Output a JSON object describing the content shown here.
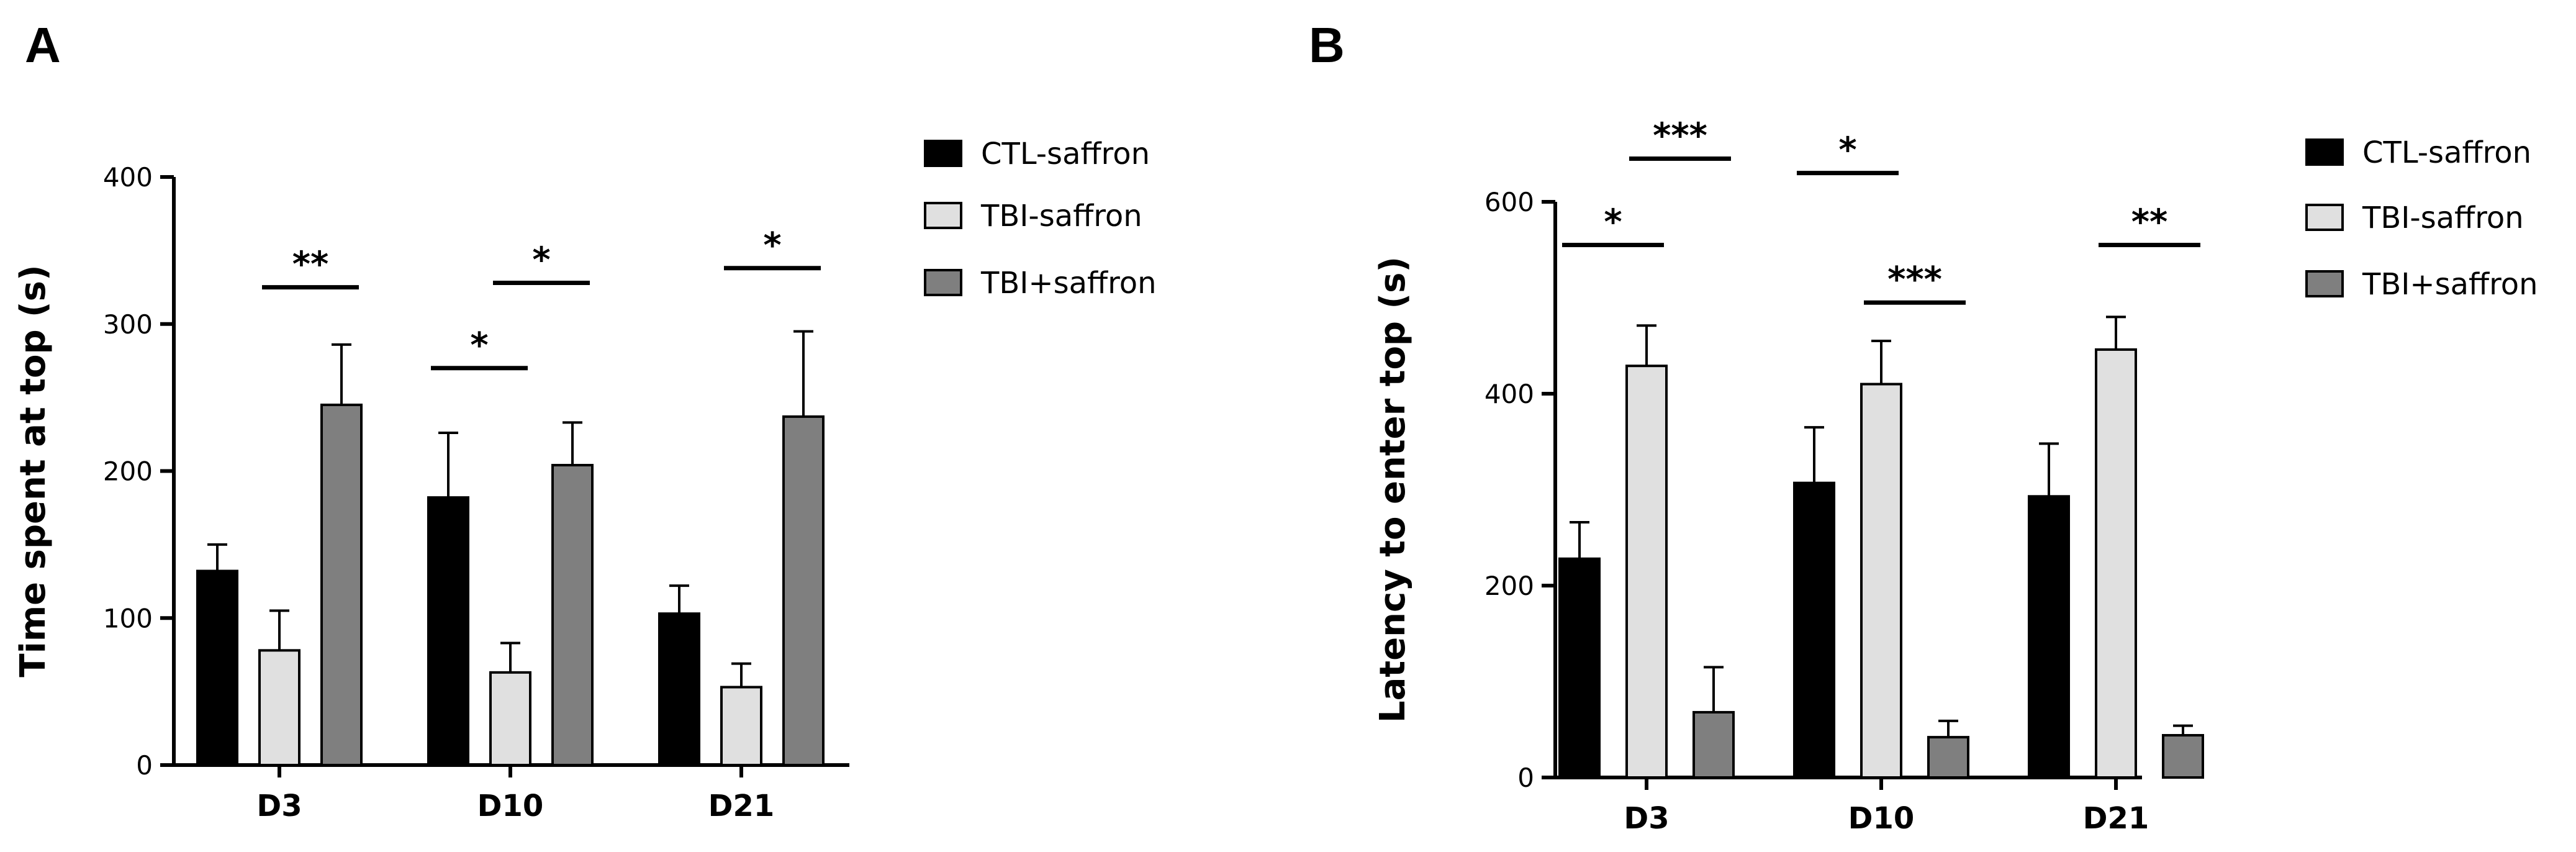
{
  "chart_data": [
    {
      "panel": "A",
      "type": "bar",
      "ylabel": "Time spent at top (s)",
      "ylim": [
        0,
        400
      ],
      "yticks": [
        0,
        100,
        200,
        300,
        400
      ],
      "categories": [
        "D3",
        "D10",
        "D21"
      ],
      "series": [
        {
          "name": "CTL-saffron",
          "color": "#000000",
          "values": [
            132,
            182,
            103
          ],
          "errors": [
            18,
            44,
            19
          ]
        },
        {
          "name": "TBI-saffron",
          "color": "#e0e0e0",
          "values": [
            78,
            63,
            53
          ],
          "errors": [
            27,
            20,
            16
          ]
        },
        {
          "name": "TBI+saffron",
          "color": "#7f7f7f",
          "values": [
            245,
            204,
            237
          ],
          "errors": [
            41,
            29,
            58
          ]
        }
      ],
      "significance": [
        {
          "label": "**",
          "category": 0,
          "from": 1,
          "to": 2,
          "y": 325
        },
        {
          "label": "*",
          "category": 1,
          "from": 0,
          "to": 1,
          "y": 270
        },
        {
          "label": "*",
          "category": 1,
          "from": 1,
          "to": 2,
          "y": 328
        },
        {
          "label": "*",
          "category": 2,
          "from": 1,
          "to": 2,
          "y": 338
        }
      ],
      "legend": "right"
    },
    {
      "panel": "B",
      "type": "bar",
      "ylabel": "Latency to enter top (s)",
      "ylim": [
        0,
        600
      ],
      "yticks": [
        0,
        200,
        400,
        600
      ],
      "categories": [
        "D3",
        "D10",
        "D21"
      ],
      "series": [
        {
          "name": "CTL-saffron",
          "color": "#000000",
          "values": [
            228,
            307,
            293
          ],
          "errors": [
            38,
            58,
            55
          ]
        },
        {
          "name": "TBI-saffron",
          "color": "#e0e0e0",
          "values": [
            429,
            410,
            446
          ],
          "errors": [
            42,
            45,
            34
          ]
        },
        {
          "name": "TBI+saffron",
          "color": "#7f7f7f",
          "values": [
            68,
            42,
            44
          ],
          "errors": [
            47,
            17,
            10
          ]
        }
      ],
      "significance": [
        {
          "label": "*",
          "category": 0,
          "from": 0,
          "to": 1,
          "y": 555
        },
        {
          "label": "***",
          "category": 0,
          "from": 1,
          "to": 2,
          "y": 645
        },
        {
          "label": "*",
          "category": 1,
          "from": 0,
          "to": 1,
          "y": 630
        },
        {
          "label": "***",
          "category": 1,
          "from": 1,
          "to": 2,
          "y": 495
        },
        {
          "label": "**",
          "category": 2,
          "from": 1,
          "to": 2,
          "y": 555
        }
      ],
      "legend": "right"
    }
  ]
}
